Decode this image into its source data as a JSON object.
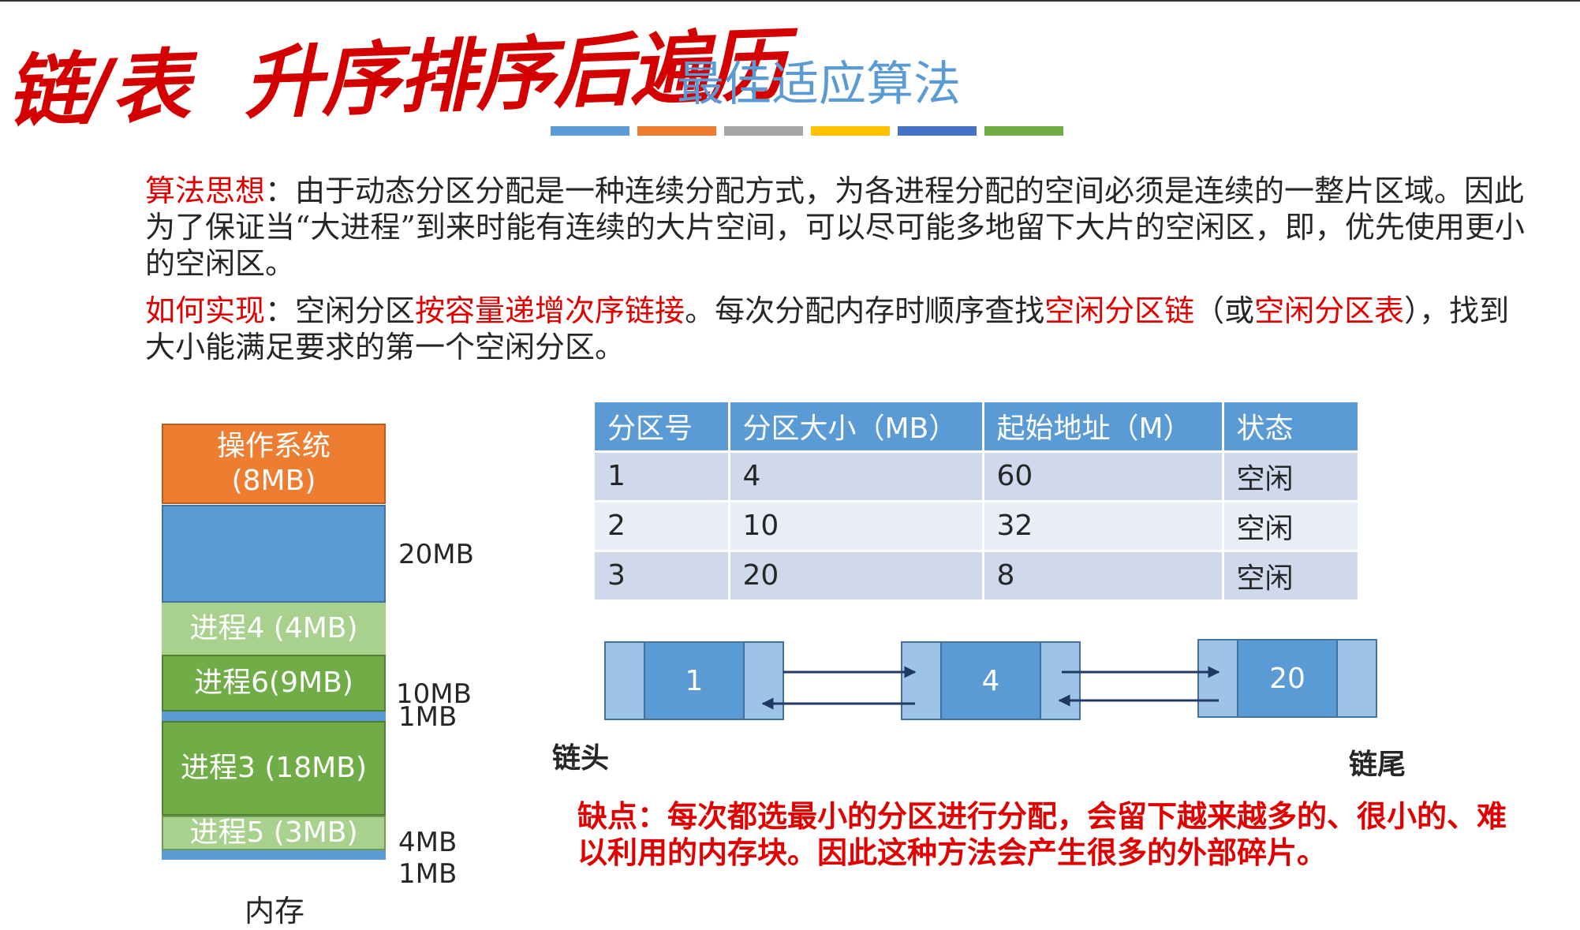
{
  "handwriting": {
    "part1": "链/表",
    "part2": "升序排序后遍历"
  },
  "title": "最佳适应算法",
  "colors": {
    "stripes": [
      "#5b9bd5",
      "#ed7d31",
      "#a5a5a5",
      "#ffc000",
      "#4472c4",
      "#70ad47"
    ],
    "accent_red": "#e00000"
  },
  "idea": {
    "label": "算法思想",
    "colon": "：",
    "text": "由于动态分区分配是一种连续分配方式，为各进程分配的空间必须是连续的一整片区域。因此为了保证当“大进程”到来时能有连续的大片空间，可以尽可能多地留下大片的空闲区，即，优先使用更小的空闲区。"
  },
  "impl": {
    "label": "如何实现",
    "colon": "：",
    "t1": "空闲分区",
    "r1": "按容量递增次序链接",
    "t2": "。每次分配内存时顺序查找",
    "r2": "空闲分区链",
    "t3": "（或",
    "r3": "空闲分区表",
    "t4": "），找到大小能满足要求的第一个空闲分区。"
  },
  "memory": {
    "os_name": "操作系统",
    "os_size": "(8MB)",
    "p4": "进程4 (4MB)",
    "p6": "进程6(9MB)",
    "p3": "进程3 (18MB)",
    "p5": "进程5 (3MB)",
    "caption": "内存",
    "free_labels": [
      "20MB",
      "10MB",
      "1MB",
      "4MB",
      "1MB"
    ]
  },
  "table": {
    "headers": [
      "分区号",
      "分区大小（MB）",
      "起始地址（M）",
      "状态"
    ],
    "rows": [
      [
        "1",
        "4",
        "60",
        "空闲"
      ],
      [
        "2",
        "10",
        "32",
        "空闲"
      ],
      [
        "3",
        "20",
        "8",
        "空闲"
      ]
    ]
  },
  "linked_list": {
    "nodes": [
      "1",
      "4",
      "20"
    ],
    "head_label": "链头",
    "tail_label": "链尾"
  },
  "drawback": "缺点：每次都选最小的分区进行分配，会留下越来越多的、很小的、难以利用的内存块。因此这种方法会产生很多的外部碎片。"
}
